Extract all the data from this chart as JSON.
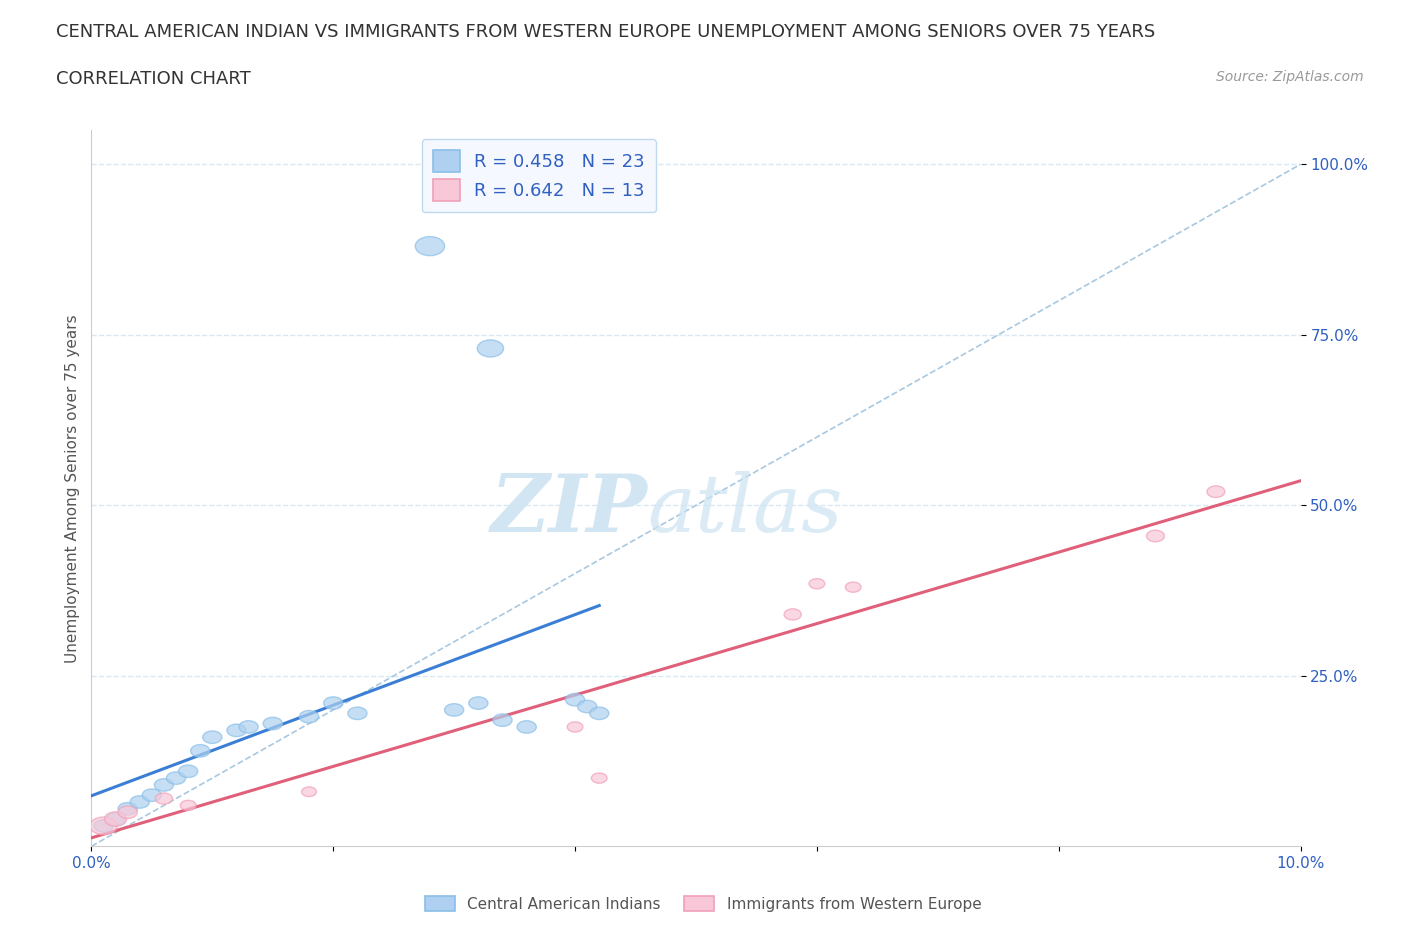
{
  "title_line1": "CENTRAL AMERICAN INDIAN VS IMMIGRANTS FROM WESTERN EUROPE UNEMPLOYMENT AMONG SENIORS OVER 75 YEARS",
  "title_line2": "CORRELATION CHART",
  "source_text": "Source: ZipAtlas.com",
  "ylabel": "Unemployment Among Seniors over 75 years",
  "xlim": [
    0.0,
    0.1
  ],
  "ylim": [
    0.0,
    1.05
  ],
  "blue_R": 0.458,
  "blue_N": 23,
  "pink_R": 0.642,
  "pink_N": 13,
  "blue_color": "#89bfe8",
  "blue_fill": "#afd0f0",
  "pink_color": "#f0a0b8",
  "pink_fill": "#f8c8d8",
  "blue_line_color": "#3a7fd5",
  "pink_line_color": "#e0607a",
  "ref_line_color": "#a8c8e0",
  "legend_text_color": "#3060c0",
  "axis_tick_color": "#3060c0",
  "watermark_color": "#c8dff0",
  "background_color": "#ffffff",
  "grid_color": "#d8e8f5",
  "title_fontsize": 13,
  "subtitle_fontsize": 13,
  "axis_label_fontsize": 11,
  "tick_fontsize": 11,
  "legend_fontsize": 13
}
